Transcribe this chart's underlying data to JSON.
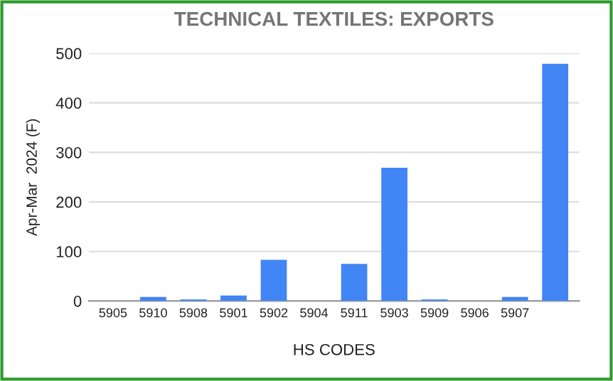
{
  "chart_data": {
    "type": "bar",
    "title": "TECHNICAL TEXTILES: EXPORTS",
    "xlabel": "HS CODES",
    "ylabel": "Apr-Mar  2024 (F)",
    "categories": [
      "5905",
      "5910",
      "5908",
      "5901",
      "5902",
      "5904",
      "5911",
      "5903",
      "5909",
      "5906",
      "5907",
      null
    ],
    "values": [
      0,
      8,
      3,
      11,
      83,
      0,
      75,
      269,
      3,
      0,
      8,
      479
    ],
    "color": "#4285f4",
    "ylim": [
      0,
      500
    ],
    "yticks": [
      0,
      100,
      200,
      300,
      400,
      500
    ],
    "grid": "y"
  }
}
